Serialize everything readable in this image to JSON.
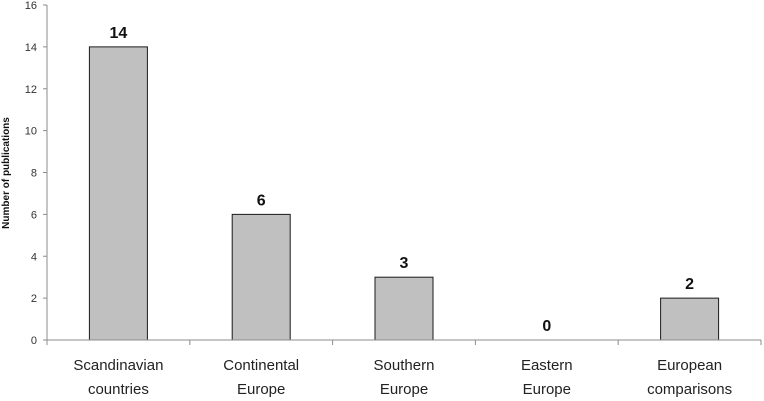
{
  "chart_data": {
    "type": "bar",
    "title": "",
    "xlabel": "",
    "ylabel": "Number of publications",
    "ylim": [
      0,
      16
    ],
    "yticks": [
      0,
      2,
      4,
      6,
      8,
      10,
      12,
      14,
      16
    ],
    "categories": [
      [
        "Scandinavian",
        "countries"
      ],
      [
        "Continental",
        "Europe"
      ],
      [
        "Southern",
        "Europe"
      ],
      [
        "Eastern",
        "Europe"
      ],
      [
        "European",
        "comparisons"
      ]
    ],
    "values": [
      14,
      6,
      3,
      0,
      2
    ],
    "grid": false,
    "legend": "none",
    "colors": {
      "bar_fill": "#c0c0c0",
      "bar_stroke": "#1a1a1a",
      "axis": "#8c8c8c"
    }
  }
}
